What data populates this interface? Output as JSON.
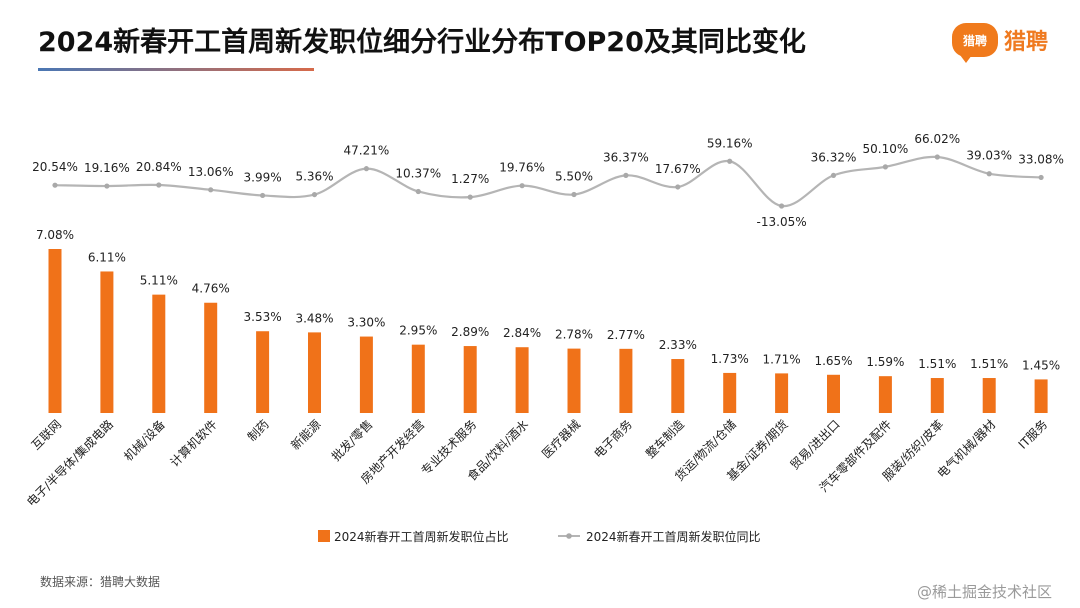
{
  "title": "2024新春开工首周新发职位细分行业分布TOP20及其同比变化",
  "logo": {
    "badge": "猎聘",
    "text": "猎聘"
  },
  "source": "数据来源：猎聘大数据",
  "watermark": "@稀土掘金技术社区",
  "colors": {
    "bar": "#f07219",
    "line": "#b5b5b5",
    "accent_orange": "#ef7a20"
  },
  "chart_data": {
    "type": "bar+line",
    "categories": [
      "互联网",
      "电子/半导体/集成电路",
      "机械/设备",
      "计算机软件",
      "制药",
      "新能源",
      "批发/零售",
      "房地产开发经营",
      "专业技术服务",
      "食品/饮料/酒水",
      "医疗器械",
      "电子商务",
      "整车制造",
      "货运/物流/仓储",
      "基金/证券/期货",
      "贸易/进出口",
      "汽车零部件及配件",
      "服装/纺织/皮革",
      "电气机械/器材",
      "IT服务"
    ],
    "series": [
      {
        "name": "2024新春开工首周新发职位占比",
        "type": "bar",
        "values": [
          7.08,
          6.11,
          5.11,
          4.76,
          3.53,
          3.48,
          3.3,
          2.95,
          2.89,
          2.84,
          2.78,
          2.77,
          2.33,
          1.73,
          1.71,
          1.65,
          1.59,
          1.51,
          1.51,
          1.45
        ],
        "labels": [
          "7.08%",
          "6.11%",
          "5.11%",
          "4.76%",
          "3.53%",
          "3.48%",
          "3.30%",
          "2.95%",
          "2.89%",
          "2.84%",
          "2.78%",
          "2.77%",
          "2.33%",
          "1.73%",
          "1.71%",
          "1.65%",
          "1.59%",
          "1.51%",
          "1.51%",
          "1.45%"
        ]
      },
      {
        "name": "2024新春开工首周新发职位同比",
        "type": "line",
        "values": [
          20.54,
          19.16,
          20.84,
          13.06,
          3.99,
          5.36,
          47.21,
          10.37,
          1.27,
          19.76,
          5.5,
          36.37,
          17.67,
          59.16,
          -13.05,
          36.32,
          50.1,
          66.02,
          39.03,
          33.08
        ],
        "labels": [
          "20.54%",
          "19.16%",
          "20.84%",
          "13.06%",
          "3.99%",
          "5.36%",
          "47.21%",
          "10.37%",
          "1.27%",
          "19.76%",
          "5.50%",
          "36.37%",
          "17.67%",
          "59.16%",
          "-13.05%",
          "36.32%",
          "50.10%",
          "66.02%",
          "39.03%",
          "33.08%"
        ]
      }
    ],
    "legend_position": "bottom-center"
  }
}
